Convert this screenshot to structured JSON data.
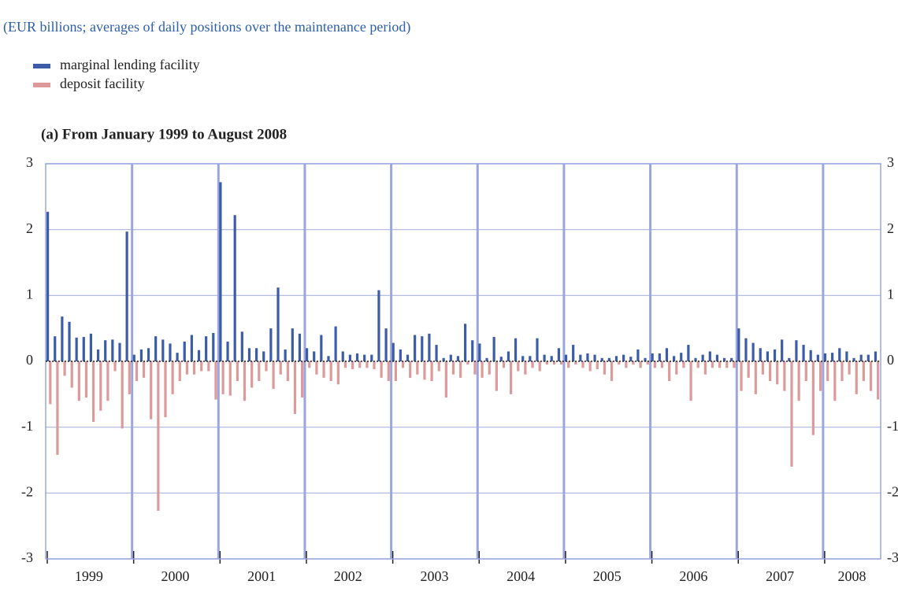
{
  "chart_data": {
    "type": "bar",
    "subtitle": "(EUR billions; averages of daily positions over the maintenance period)",
    "panel_title": "(a) From January 1999 to August 2008",
    "categories": [
      null,
      null,
      null,
      null,
      null,
      null,
      "1999",
      null,
      null,
      null,
      null,
      null,
      null,
      null,
      null,
      null,
      null,
      null,
      "2000",
      null,
      null,
      null,
      null,
      null,
      null,
      null,
      null,
      null,
      null,
      null,
      "2001",
      null,
      null,
      null,
      null,
      null,
      null,
      null,
      null,
      null,
      null,
      null,
      "2002",
      null,
      null,
      null,
      null,
      null,
      null,
      null,
      null,
      null,
      null,
      null,
      "2003",
      null,
      null,
      null,
      null,
      null,
      null,
      null,
      null,
      null,
      null,
      null,
      "2004",
      null,
      null,
      null,
      null,
      null,
      null,
      null,
      null,
      null,
      null,
      null,
      "2005",
      null,
      null,
      null,
      null,
      null,
      null,
      null,
      null,
      null,
      null,
      null,
      "2006",
      null,
      null,
      null,
      null,
      null,
      null,
      null,
      null,
      null,
      null,
      null,
      "2007",
      null,
      null,
      null,
      null,
      null,
      null,
      null,
      null,
      null,
      "2008",
      null,
      null,
      null
    ],
    "series": [
      {
        "name": "marginal lending facility",
        "color": "#3c5ca8",
        "values": [
          2.27,
          0.38,
          0.68,
          0.6,
          0.36,
          0.37,
          0.42,
          0.18,
          0.32,
          0.33,
          0.28,
          1.97,
          0.1,
          0.18,
          0.2,
          0.38,
          0.33,
          0.27,
          0.13,
          0.3,
          0.4,
          0.17,
          0.38,
          0.43,
          2.72,
          0.3,
          2.22,
          0.45,
          0.2,
          0.2,
          0.15,
          0.5,
          1.12,
          0.18,
          0.5,
          0.42,
          0.2,
          0.15,
          0.4,
          0.08,
          0.53,
          0.15,
          0.1,
          0.12,
          0.1,
          0.1,
          1.08,
          0.5,
          0.28,
          0.18,
          0.1,
          0.4,
          0.38,
          0.42,
          0.25,
          0.05,
          0.1,
          0.08,
          0.57,
          0.32,
          0.27,
          0.05,
          0.37,
          0.07,
          0.15,
          0.35,
          0.08,
          0.08,
          0.35,
          0.1,
          0.08,
          0.2,
          0.1,
          0.25,
          0.1,
          0.12,
          0.1,
          0.05,
          0.05,
          0.08,
          0.1,
          0.07,
          0.18,
          0.05,
          0.12,
          0.12,
          0.2,
          0.08,
          0.13,
          0.25,
          0.05,
          0.1,
          0.15,
          0.1,
          0.05,
          0.05,
          0.5,
          0.35,
          0.28,
          0.2,
          0.15,
          0.18,
          0.33,
          0.05,
          0.32,
          0.25,
          0.17,
          0.1,
          0.12,
          0.13,
          0.2,
          0.15,
          0.05,
          0.1,
          0.1,
          0.15
        ]
      },
      {
        "name": "deposit facility",
        "color": "#dc9a9a",
        "values": [
          -0.65,
          -1.42,
          -0.22,
          -0.4,
          -0.6,
          -0.55,
          -0.92,
          -0.75,
          -0.6,
          -0.15,
          -1.02,
          -0.5,
          -0.3,
          -0.25,
          -0.88,
          -2.27,
          -0.85,
          -0.5,
          -0.3,
          -0.2,
          -0.2,
          -0.15,
          -0.15,
          -0.58,
          -0.5,
          -0.52,
          -0.3,
          -0.6,
          -0.4,
          -0.3,
          -0.15,
          -0.42,
          -0.2,
          -0.3,
          -0.8,
          -0.55,
          -0.1,
          -0.2,
          -0.25,
          -0.3,
          -0.35,
          -0.1,
          -0.12,
          -0.1,
          -0.1,
          -0.12,
          -0.25,
          -0.3,
          -0.3,
          -0.1,
          -0.25,
          -0.2,
          -0.28,
          -0.3,
          -0.15,
          -0.55,
          -0.2,
          -0.25,
          -0.05,
          -0.2,
          -0.25,
          -0.2,
          -0.45,
          -0.1,
          -0.5,
          -0.15,
          -0.2,
          -0.1,
          -0.15,
          -0.05,
          -0.05,
          -0.05,
          -0.1,
          -0.05,
          -0.1,
          -0.15,
          -0.12,
          -0.2,
          -0.3,
          -0.05,
          -0.1,
          -0.05,
          -0.1,
          -0.05,
          -0.1,
          -0.1,
          -0.3,
          -0.2,
          -0.1,
          -0.6,
          -0.1,
          -0.2,
          -0.1,
          -0.1,
          -0.1,
          -0.1,
          -0.45,
          -0.25,
          -0.5,
          -0.2,
          -0.3,
          -0.35,
          -0.45,
          -1.6,
          -0.6,
          -0.3,
          -1.12,
          -0.45,
          -0.3,
          -0.6,
          -0.3,
          -0.2,
          -0.5,
          -0.3,
          -0.45,
          -0.58
        ]
      }
    ],
    "ylim": [
      -3,
      3
    ],
    "yticks": [
      -3,
      -2,
      -1,
      0,
      1,
      2,
      3
    ],
    "grid": true,
    "legend": "top-left"
  }
}
